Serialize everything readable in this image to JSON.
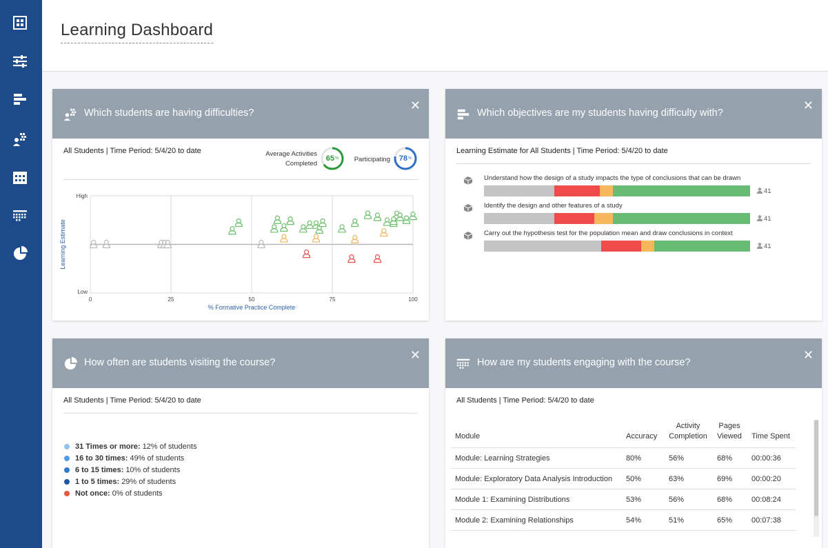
{
  "page": {
    "title": "Learning Dashboard"
  },
  "sidebar": {
    "icons": [
      "grid-icon",
      "sliders-icon",
      "bars-icon",
      "students-icon",
      "calendar-icon",
      "table-icon",
      "pie-chart-icon"
    ]
  },
  "cards": {
    "difficulties": {
      "title": "Which students are having difficulties?",
      "close": "✕",
      "subtitle": "All Students | Time Period: 5/4/20 to date",
      "avg_label": "Average Activities Completed",
      "avg_value": "65",
      "avg_pct": 65,
      "participating_label": "Participating",
      "participating_value": "78",
      "participating_pct": 78,
      "pct_sign": "%"
    },
    "objectives": {
      "title": "Which objectives are my students having difficulty with?",
      "close": "✕",
      "subtitle": "Learning Estimate for All Students | Time Period: 5/4/20 to date",
      "items": [
        {
          "label": "Understand how the design of a study impacts the type of conclusions that can be drawn",
          "count": "41",
          "segments": [
            0.265,
            0.17,
            0.05,
            0.515
          ]
        },
        {
          "label": "Identify the design and other features of a study",
          "count": "41",
          "segments": [
            0.265,
            0.15,
            0.07,
            0.515
          ]
        },
        {
          "label": "Carry out the hypothesis test for the population mean and draw conclusions in context",
          "count": "41",
          "segments": [
            0.44,
            0.15,
            0.05,
            0.36
          ]
        }
      ],
      "segment_colors": [
        "#c4c4c4",
        "#ef4b4b",
        "#f8b65b",
        "#67bb72"
      ]
    },
    "visits": {
      "title": "How often are students visiting the course?",
      "close": "✕",
      "subtitle": "All Students | Time Period: 5/4/20 to date",
      "legend": [
        {
          "key": "31 Times or more:",
          "text": "12% of students",
          "color": "#8fc3f0"
        },
        {
          "key": "16 to 30 times:",
          "text": "49% of students",
          "color": "#4f9de3"
        },
        {
          "key": "6 to 15 times:",
          "text": "10% of students",
          "color": "#2e78cf"
        },
        {
          "key": "1 to 5 times:",
          "text": "29% of students",
          "color": "#1f56a6"
        },
        {
          "key": "Not once:",
          "text": "0% of students",
          "color": "#e8573f"
        }
      ]
    },
    "engagement": {
      "title": "How are my students engaging with the course?",
      "close": "✕",
      "subtitle": "All Students | Time Period: 5/4/20 to date",
      "columns": [
        "Module",
        "Accuracy",
        "Activity Completion",
        "Pages Viewed",
        "Time Spent"
      ],
      "rows": [
        [
          "Module: Learning Strategies",
          "80%",
          "56%",
          "68%",
          "00:00:36"
        ],
        [
          "Module: Exploratory Data Analysis Introduction",
          "50%",
          "63%",
          "69%",
          "00:00:20"
        ],
        [
          "Module 1: Examining Distributions",
          "53%",
          "56%",
          "68%",
          "00:08:24"
        ],
        [
          "Module 2: Examining Relationships",
          "54%",
          "51%",
          "65%",
          "00:07:38"
        ]
      ]
    }
  },
  "chart_data": {
    "type": "scatter",
    "xlabel": "% Formative Practice Complete",
    "ylabel": "Learning Estimate",
    "x_ticks": [
      "0",
      "25",
      "50",
      "75",
      "100"
    ],
    "y_ticks": [
      "High",
      "Low"
    ],
    "xlim": [
      0,
      100
    ],
    "colors": {
      "gray": "#b8b8b8",
      "green": "#6cbf6a",
      "orange": "#f3b458",
      "red": "#e7534f"
    },
    "points": [
      {
        "x": 1,
        "y": 0.5,
        "c": "gray"
      },
      {
        "x": 5,
        "y": 0.5,
        "c": "gray"
      },
      {
        "x": 22,
        "y": 0.5,
        "c": "gray"
      },
      {
        "x": 23,
        "y": 0.5,
        "c": "gray"
      },
      {
        "x": 24,
        "y": 0.5,
        "c": "gray"
      },
      {
        "x": 53,
        "y": 0.5,
        "c": "gray"
      },
      {
        "x": 44,
        "y": 0.64,
        "c": "green"
      },
      {
        "x": 46,
        "y": 0.72,
        "c": "green"
      },
      {
        "x": 57,
        "y": 0.66,
        "c": "green"
      },
      {
        "x": 58,
        "y": 0.75,
        "c": "green"
      },
      {
        "x": 60,
        "y": 0.67,
        "c": "green"
      },
      {
        "x": 62,
        "y": 0.74,
        "c": "green"
      },
      {
        "x": 66,
        "y": 0.66,
        "c": "green"
      },
      {
        "x": 68,
        "y": 0.7,
        "c": "green"
      },
      {
        "x": 70,
        "y": 0.7,
        "c": "green"
      },
      {
        "x": 71,
        "y": 0.65,
        "c": "green"
      },
      {
        "x": 72,
        "y": 0.72,
        "c": "green"
      },
      {
        "x": 78,
        "y": 0.66,
        "c": "green"
      },
      {
        "x": 82,
        "y": 0.72,
        "c": "green"
      },
      {
        "x": 86,
        "y": 0.8,
        "c": "green"
      },
      {
        "x": 89,
        "y": 0.78,
        "c": "green"
      },
      {
        "x": 92,
        "y": 0.73,
        "c": "green"
      },
      {
        "x": 94,
        "y": 0.72,
        "c": "green"
      },
      {
        "x": 95,
        "y": 0.8,
        "c": "green"
      },
      {
        "x": 96,
        "y": 0.78,
        "c": "green"
      },
      {
        "x": 98,
        "y": 0.75,
        "c": "green"
      },
      {
        "x": 100,
        "y": 0.79,
        "c": "green"
      },
      {
        "x": 94,
        "y": 0.74,
        "c": "green"
      },
      {
        "x": 60,
        "y": 0.56,
        "c": "orange"
      },
      {
        "x": 70,
        "y": 0.56,
        "c": "orange"
      },
      {
        "x": 82,
        "y": 0.55,
        "c": "orange"
      },
      {
        "x": 91,
        "y": 0.62,
        "c": "orange"
      },
      {
        "x": 67,
        "y": 0.4,
        "c": "red"
      },
      {
        "x": 81,
        "y": 0.35,
        "c": "red"
      },
      {
        "x": 89,
        "y": 0.35,
        "c": "red"
      }
    ]
  }
}
